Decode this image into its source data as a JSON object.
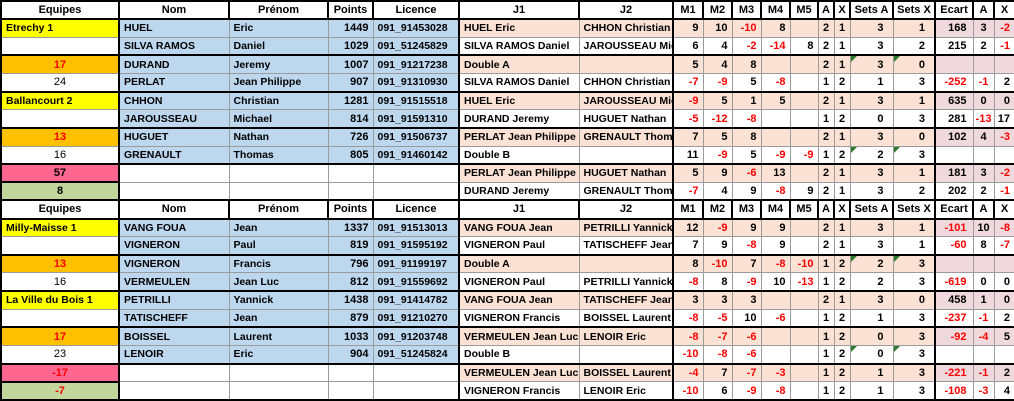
{
  "colors": {
    "team_yellow": "#FFFF00",
    "orange_highlight": "#FFC000",
    "pink_highlight": "#FF6690",
    "green_highlight": "#C3D69B",
    "player_blue": "#BDD7EE",
    "match_peach": "#FBE2D5",
    "ecart_rose": "#EFD9DC",
    "negative_text": "#FF0000",
    "comment_triangle": "#2D7A2D"
  },
  "columns": [
    "Equipes",
    "Nom",
    "Prénom",
    "Points",
    "Licence",
    "J1",
    "J2",
    "M1",
    "M2",
    "M3",
    "M4",
    "M5",
    "A",
    "X",
    "Sets A",
    "Sets X",
    "Ecart",
    "A",
    "X"
  ],
  "blocks": [
    {
      "rows": [
        {
          "eq": "Etrechy 1",
          "eqStyle": "team",
          "nom": "HUEL",
          "prenom": "Eric",
          "points": "1449",
          "licence": "091_91453028",
          "j1": "HUEL Eric",
          "j2": "CHHON Christian",
          "m": [
            "9",
            "10",
            "-10",
            "8",
            ""
          ],
          "a": "2",
          "x": "1",
          "setsA": "3",
          "setsX": "1",
          "ecart": "168",
          "a2": "3",
          "x2": "-2",
          "tri": false
        },
        {
          "eq": "",
          "eqStyle": "blank",
          "nom": "SILVA RAMOS",
          "prenom": "Daniel",
          "points": "1029",
          "licence": "091_51245829",
          "j1": "SILVA RAMOS Daniel",
          "j2": "JAROUSSEAU Michael",
          "m": [
            "6",
            "4",
            "-2",
            "-14",
            "8"
          ],
          "a": "2",
          "x": "1",
          "setsA": "3",
          "setsX": "2",
          "ecart": "215",
          "a2": "2",
          "x2": "-1",
          "tri": false
        },
        {
          "eq": "17",
          "eqStyle": "orange",
          "nom": "DURAND",
          "prenom": "Jeremy",
          "points": "1007",
          "licence": "091_91217238",
          "j1": "Double A",
          "j2": "",
          "m": [
            "5",
            "4",
            "8",
            "",
            ""
          ],
          "a": "2",
          "x": "1",
          "setsA": "3",
          "setsX": "0",
          "ecart": "",
          "a2": "",
          "x2": "",
          "tri": true
        },
        {
          "eq": "24",
          "eqStyle": "plain",
          "nom": "PERLAT",
          "prenom": "Jean Philippe",
          "points": "907",
          "licence": "091_91310930",
          "j1": "SILVA RAMOS Daniel",
          "j2": "CHHON Christian",
          "m": [
            "-7",
            "-9",
            "5",
            "-8",
            ""
          ],
          "a": "1",
          "x": "2",
          "setsA": "1",
          "setsX": "3",
          "ecart": "-252",
          "a2": "-1",
          "x2": "2",
          "tri": false
        },
        {
          "eq": "Ballancourt 2",
          "eqStyle": "team",
          "nom": "CHHON",
          "prenom": "Christian",
          "points": "1281",
          "licence": "091_91515518",
          "j1": "HUEL Eric",
          "j2": "JAROUSSEAU Michael",
          "m": [
            "-9",
            "5",
            "1",
            "5",
            ""
          ],
          "a": "2",
          "x": "1",
          "setsA": "3",
          "setsX": "1",
          "ecart": "635",
          "a2": "0",
          "x2": "0",
          "tri": false
        },
        {
          "eq": "",
          "eqStyle": "blank",
          "nom": "JAROUSSEAU",
          "prenom": "Michael",
          "points": "814",
          "licence": "091_91591310",
          "j1": "DURAND Jeremy",
          "j2": "HUGUET Nathan",
          "m": [
            "-5",
            "-12",
            "-8",
            "",
            ""
          ],
          "a": "1",
          "x": "2",
          "setsA": "0",
          "setsX": "3",
          "ecart": "281",
          "a2": "-13",
          "x2": "17",
          "tri": false
        },
        {
          "eq": "13",
          "eqStyle": "orange",
          "nom": "HUGUET",
          "prenom": "Nathan",
          "points": "726",
          "licence": "091_91506737",
          "j1": "PERLAT Jean Philippe",
          "j2": "GRENAULT Thomas",
          "m": [
            "7",
            "5",
            "8",
            "",
            ""
          ],
          "a": "2",
          "x": "1",
          "setsA": "3",
          "setsX": "0",
          "ecart": "102",
          "a2": "4",
          "x2": "-3",
          "tri": false
        },
        {
          "eq": "16",
          "eqStyle": "plain",
          "nom": "GRENAULT",
          "prenom": "Thomas",
          "points": "805",
          "licence": "091_91460142",
          "j1": "Double B",
          "j2": "",
          "m": [
            "11",
            "-9",
            "5",
            "-9",
            "-9"
          ],
          "a": "1",
          "x": "2",
          "setsA": "2",
          "setsX": "3",
          "ecart": "",
          "a2": "",
          "x2": "",
          "tri": true
        },
        {
          "eq": "57",
          "eqStyle": "pink",
          "nom": "",
          "prenom": "",
          "points": "",
          "licence": "",
          "j1": "PERLAT Jean Philippe",
          "j2": "HUGUET Nathan",
          "m": [
            "5",
            "9",
            "-6",
            "13",
            ""
          ],
          "a": "2",
          "x": "1",
          "setsA": "3",
          "setsX": "1",
          "ecart": "181",
          "a2": "3",
          "x2": "-2",
          "tri": false
        },
        {
          "eq": "8",
          "eqStyle": "green",
          "nom": "",
          "prenom": "",
          "points": "",
          "licence": "",
          "j1": "DURAND Jeremy",
          "j2": "GRENAULT Thomas",
          "m": [
            "-7",
            "4",
            "9",
            "-8",
            "9"
          ],
          "a": "2",
          "x": "1",
          "setsA": "3",
          "setsX": "2",
          "ecart": "202",
          "a2": "2",
          "x2": "-1",
          "tri": false
        }
      ]
    },
    {
      "rows": [
        {
          "eq": "Milly-Maisse 1",
          "eqStyle": "team",
          "nom": "VANG FOUA",
          "prenom": "Jean",
          "points": "1337",
          "licence": "091_91513013",
          "j1": "VANG FOUA Jean",
          "j2": "PETRILLI Yannick",
          "m": [
            "12",
            "-9",
            "9",
            "9",
            ""
          ],
          "a": "2",
          "x": "1",
          "setsA": "3",
          "setsX": "1",
          "ecart": "-101",
          "a2": "10",
          "x2": "-8",
          "tri": false
        },
        {
          "eq": "",
          "eqStyle": "blank",
          "nom": "VIGNERON",
          "prenom": "Paul",
          "points": "819",
          "licence": "091_91595192",
          "j1": "VIGNERON Paul",
          "j2": "TATISCHEFF Jean",
          "m": [
            "7",
            "9",
            "-8",
            "9",
            ""
          ],
          "a": "2",
          "x": "1",
          "setsA": "3",
          "setsX": "1",
          "ecart": "-60",
          "a2": "8",
          "x2": "-7",
          "tri": false
        },
        {
          "eq": "13",
          "eqStyle": "orange",
          "nom": "VIGNERON",
          "prenom": "Francis",
          "points": "796",
          "licence": "091_91199197",
          "j1": "Double A",
          "j2": "",
          "m": [
            "8",
            "-10",
            "7",
            "-8",
            "-10"
          ],
          "a": "1",
          "x": "2",
          "setsA": "2",
          "setsX": "3",
          "ecart": "",
          "a2": "",
          "x2": "",
          "tri": true
        },
        {
          "eq": "16",
          "eqStyle": "plain",
          "nom": "VERMEULEN",
          "prenom": "Jean Luc",
          "points": "812",
          "licence": "091_91559692",
          "j1": "VIGNERON Paul",
          "j2": "PETRILLI Yannick",
          "m": [
            "-8",
            "8",
            "-9",
            "10",
            "-13"
          ],
          "a": "1",
          "x": "2",
          "setsA": "2",
          "setsX": "3",
          "ecart": "-619",
          "a2": "0",
          "x2": "0",
          "tri": false
        },
        {
          "eq": "La Ville du Bois 1",
          "eqStyle": "team",
          "nom": "PETRILLI",
          "prenom": "Yannick",
          "points": "1438",
          "licence": "091_91414782",
          "j1": "VANG FOUA Jean",
          "j2": "TATISCHEFF Jean",
          "m": [
            "3",
            "3",
            "3",
            "",
            ""
          ],
          "a": "2",
          "x": "1",
          "setsA": "3",
          "setsX": "0",
          "ecart": "458",
          "a2": "1",
          "x2": "0",
          "tri": false
        },
        {
          "eq": "",
          "eqStyle": "blank",
          "nom": "TATISCHEFF",
          "prenom": "Jean",
          "points": "879",
          "licence": "091_91210270",
          "j1": "VIGNERON Francis",
          "j2": "BOISSEL Laurent",
          "m": [
            "-8",
            "-5",
            "10",
            "-6",
            ""
          ],
          "a": "1",
          "x": "2",
          "setsA": "1",
          "setsX": "3",
          "ecart": "-237",
          "a2": "-1",
          "x2": "2",
          "tri": false
        },
        {
          "eq": "17",
          "eqStyle": "orange",
          "nom": "BOISSEL",
          "prenom": "Laurent",
          "points": "1033",
          "licence": "091_91203748",
          "j1": "VERMEULEN Jean Luc",
          "j2": "LENOIR Eric",
          "m": [
            "-8",
            "-7",
            "-6",
            "",
            ""
          ],
          "a": "1",
          "x": "2",
          "setsA": "0",
          "setsX": "3",
          "ecart": "-92",
          "a2": "-4",
          "x2": "5",
          "tri": false
        },
        {
          "eq": "23",
          "eqStyle": "plain",
          "nom": "LENOIR",
          "prenom": "Eric",
          "points": "904",
          "licence": "091_51245824",
          "j1": "Double B",
          "j2": "",
          "m": [
            "-10",
            "-8",
            "-6",
            "",
            ""
          ],
          "a": "1",
          "x": "2",
          "setsA": "0",
          "setsX": "3",
          "ecart": "",
          "a2": "",
          "x2": "",
          "tri": true
        },
        {
          "eq": "-17",
          "eqStyle": "pink",
          "nom": "",
          "prenom": "",
          "points": "",
          "licence": "",
          "j1": "VERMEULEN Jean Luc",
          "j2": "BOISSEL Laurent",
          "m": [
            "-4",
            "7",
            "-7",
            "-3",
            ""
          ],
          "a": "1",
          "x": "2",
          "setsA": "1",
          "setsX": "3",
          "ecart": "-221",
          "a2": "-1",
          "x2": "2",
          "tri": false
        },
        {
          "eq": "-7",
          "eqStyle": "green",
          "nom": "",
          "prenom": "",
          "points": "",
          "licence": "",
          "j1": "VIGNERON Francis",
          "j2": "LENOIR Eric",
          "m": [
            "-10",
            "6",
            "-9",
            "-8",
            ""
          ],
          "a": "1",
          "x": "2",
          "setsA": "1",
          "setsX": "3",
          "ecart": "-108",
          "a2": "-3",
          "x2": "4",
          "tri": false
        }
      ]
    }
  ]
}
